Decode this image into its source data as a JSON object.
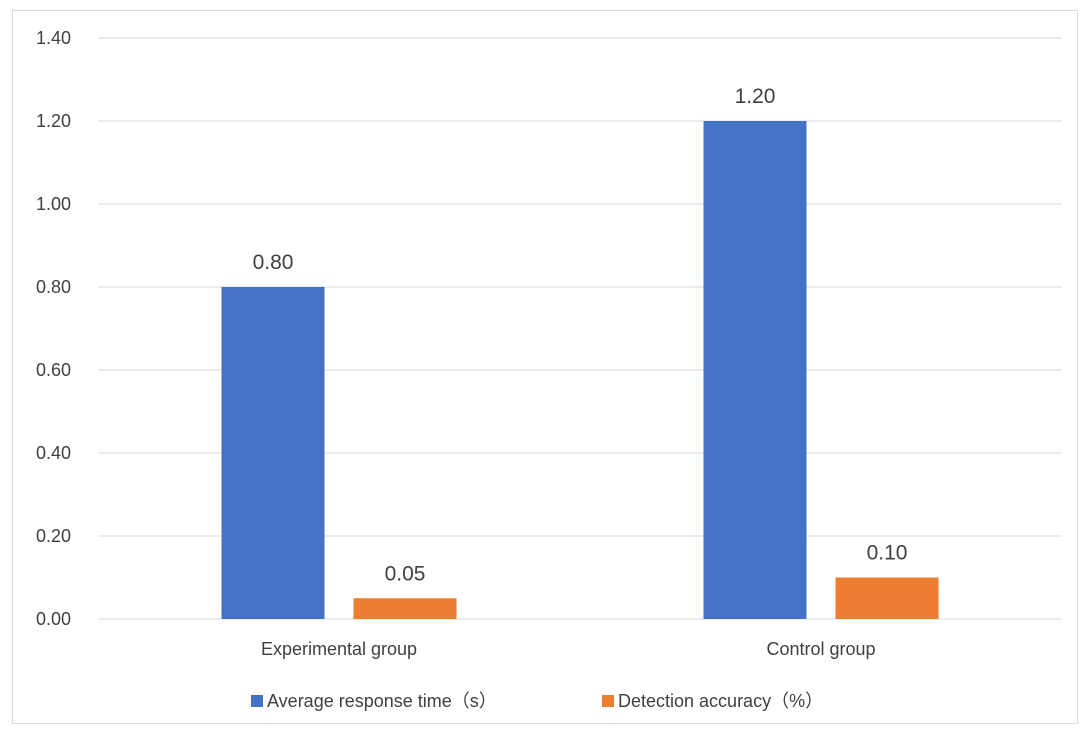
{
  "chart_data": {
    "type": "bar",
    "title": "",
    "xlabel": "",
    "ylabel": "",
    "categories": [
      "Experimental group",
      "Control group"
    ],
    "series": [
      {
        "name": "Average response time（s）",
        "color": "#4472C4",
        "values": [
          0.8,
          1.2
        ],
        "labels": [
          "0.80",
          "1.20"
        ]
      },
      {
        "name": "Detection accuracy（%）",
        "color": "#ED7D31",
        "values": [
          0.05,
          0.1
        ],
        "labels": [
          "0.05",
          "0.10"
        ]
      }
    ],
    "ylim": [
      0,
      1.4
    ],
    "yticks": [
      0.0,
      0.2,
      0.4,
      0.6,
      0.8,
      1.0,
      1.2,
      1.4
    ],
    "ytick_labels": [
      "0.00",
      "0.20",
      "0.40",
      "0.60",
      "0.80",
      "1.00",
      "1.20",
      "1.40"
    ],
    "grid": true,
    "legend_position": "bottom"
  }
}
